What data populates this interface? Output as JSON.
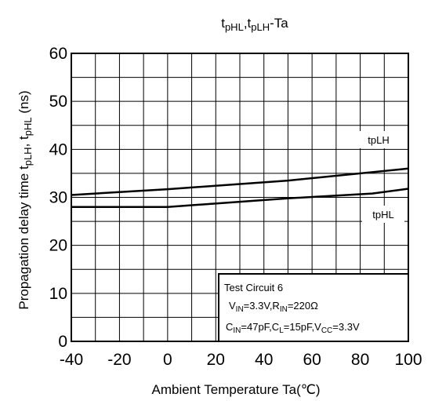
{
  "chart_data": {
    "type": "line",
    "title": {
      "t1": "t",
      "s1": "pHL",
      "sep": ",",
      "t2": "t",
      "s2": "pLH",
      "tail": "-Ta"
    },
    "xlabel": "Ambient Temperature Ta(℃)",
    "ylabel": {
      "main": "Propagation delay time  ",
      "t1": "t",
      "s1": "pLH",
      "sep": ", t",
      "s2": "pHL",
      "unit": "(ns)"
    },
    "xlim": [
      -40,
      100
    ],
    "ylim": [
      0,
      60
    ],
    "x_ticks": [
      -40,
      -20,
      0,
      20,
      40,
      60,
      80,
      100
    ],
    "y_ticks": [
      0,
      10,
      20,
      30,
      40,
      50,
      60
    ],
    "grid": true,
    "series": [
      {
        "name": "tpLH",
        "x": [
          -40,
          0,
          50,
          100
        ],
        "y": [
          30.5,
          31.7,
          33.5,
          36
        ]
      },
      {
        "name": "tpHL",
        "x": [
          -40,
          0,
          50,
          85,
          100
        ],
        "y": [
          28,
          28,
          29.8,
          30.8,
          31.8
        ]
      }
    ],
    "legend_box": {
      "line1": "Test Circuit 6",
      "l2": {
        "a": "V",
        "a_sub": "IN",
        "b": "=3.3V,R",
        "b_sub": "IN",
        "c": "=220Ω"
      },
      "l3": {
        "a": "C",
        "a_sub": "IN",
        "b": "=47pF,C",
        "b_sub": "L",
        "c": "=15pF,V",
        "c_sub": "CC",
        "d": "=3.3V"
      }
    },
    "colors": {
      "line": "#000000",
      "grid": "#000000",
      "background": "#ffffff"
    }
  }
}
